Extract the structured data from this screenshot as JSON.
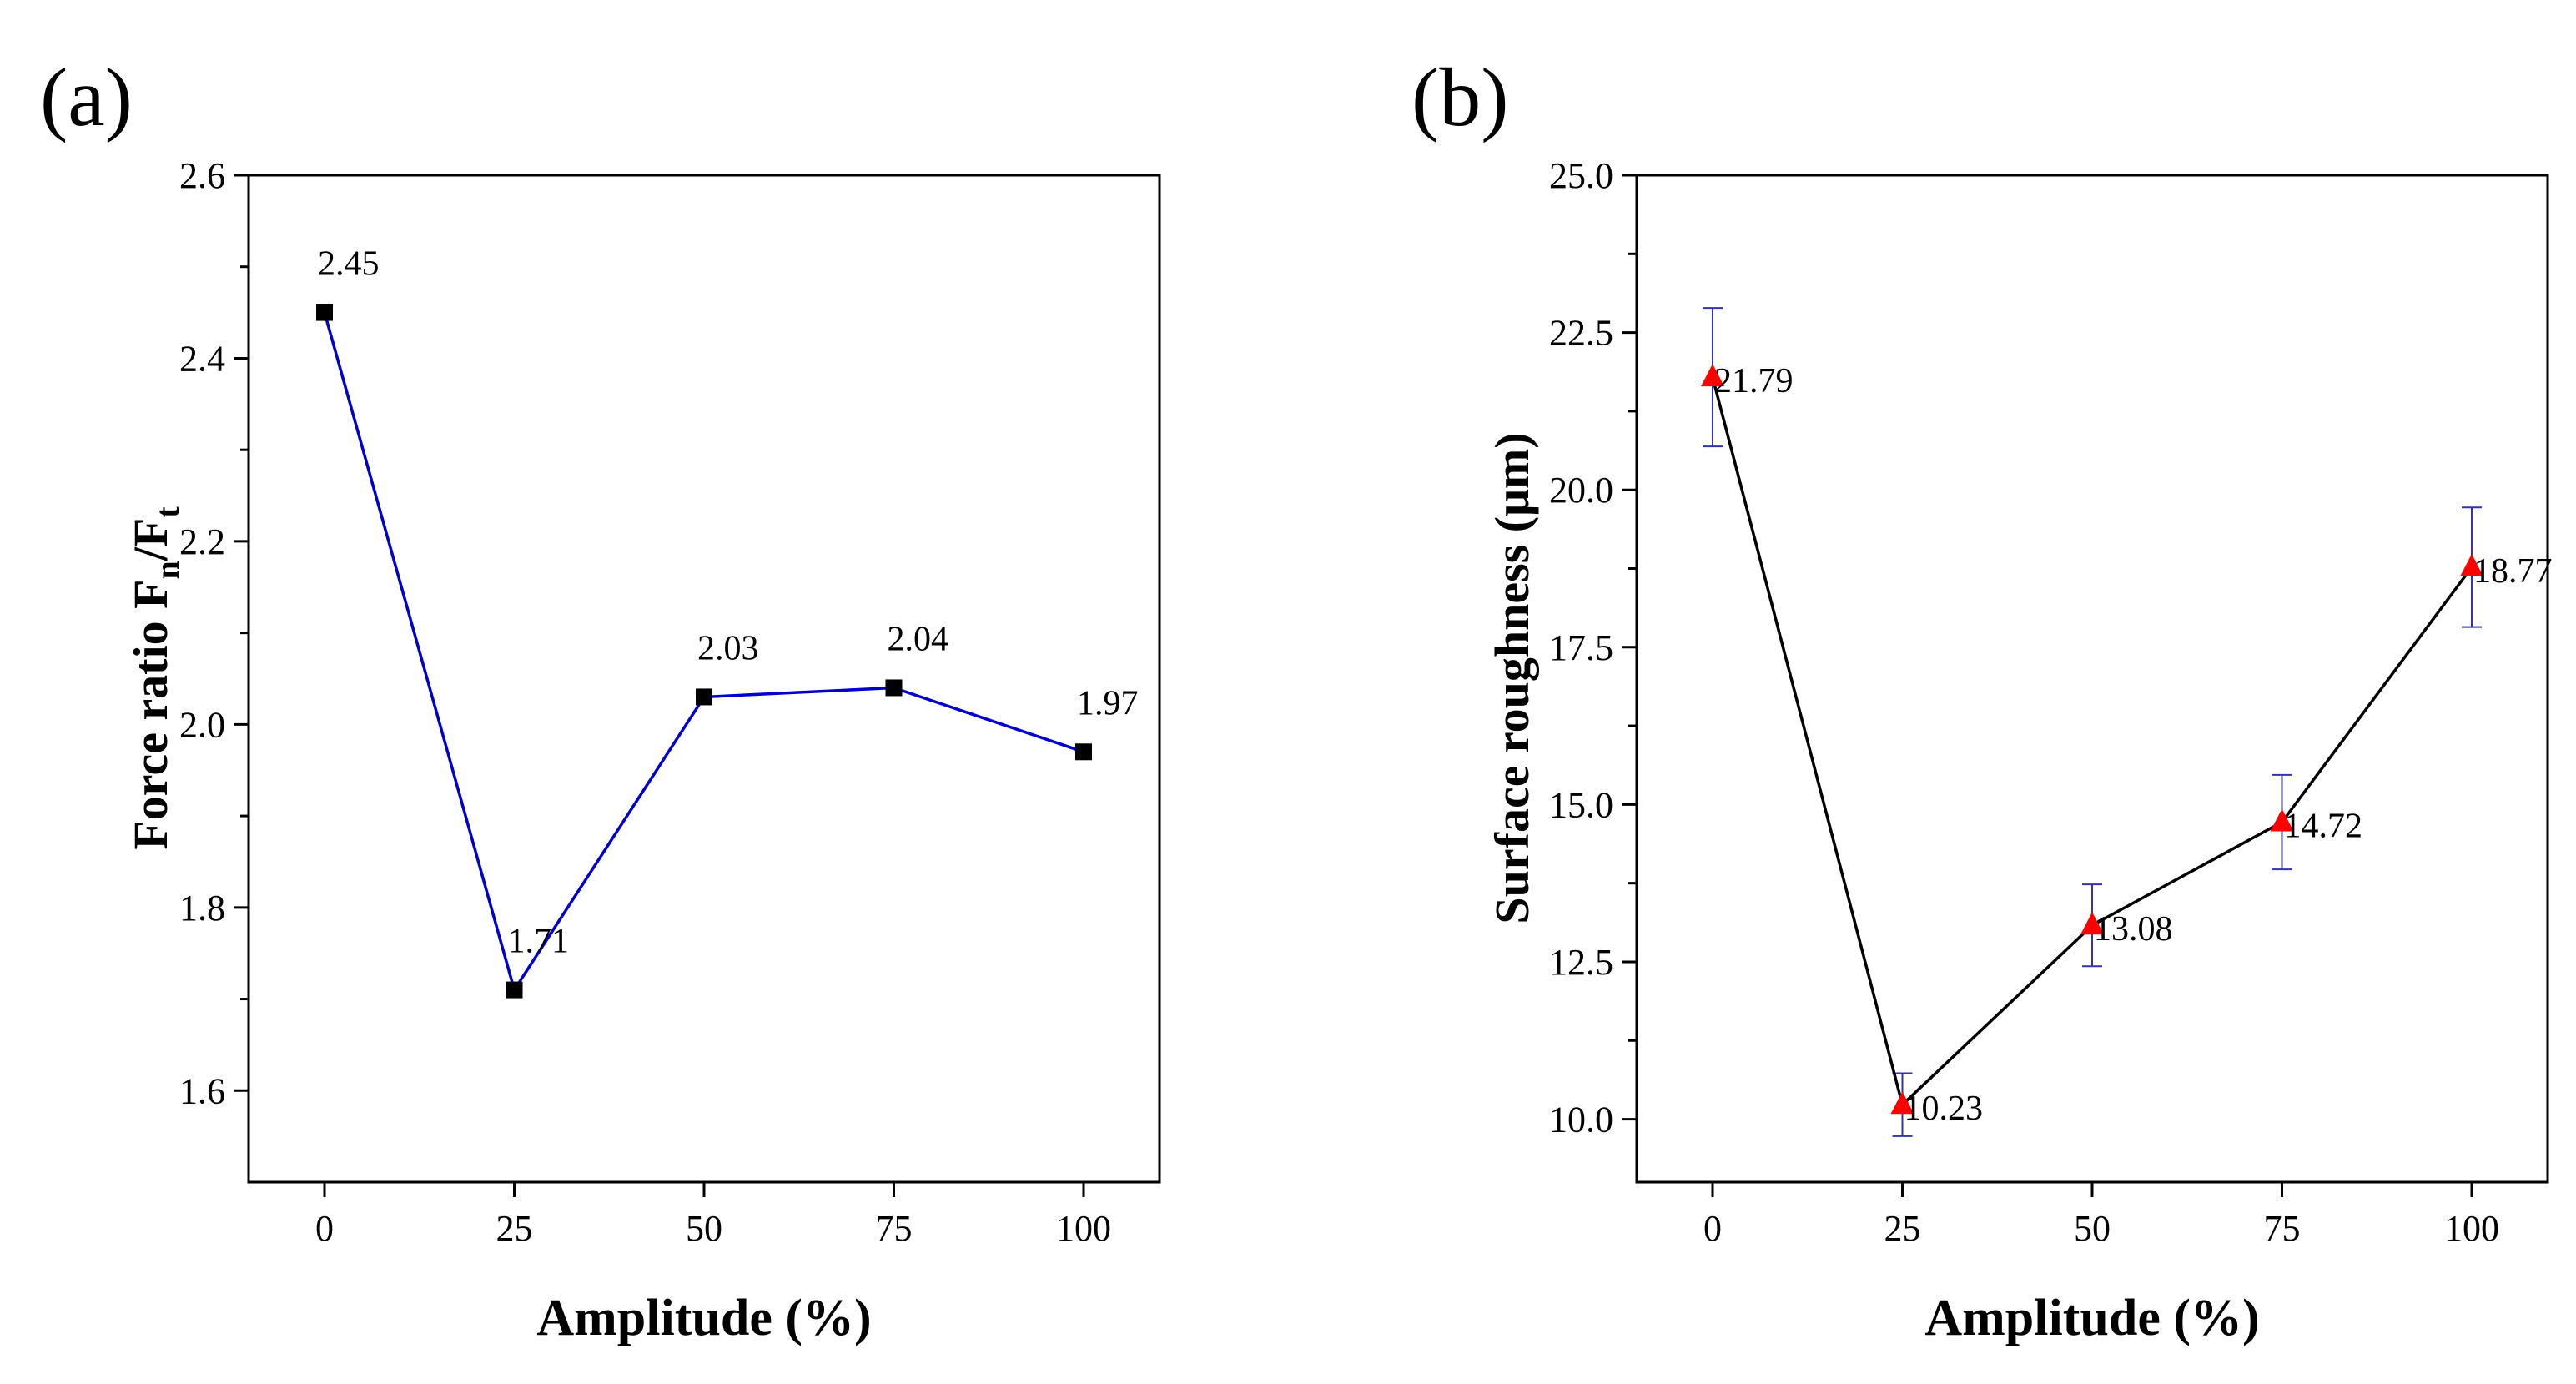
{
  "chart_data": [
    {
      "panel_label": "(a)",
      "type": "line",
      "title": "",
      "xlabel": "Amplitude (%)",
      "ylabel": {
        "prefix": "Force ratio F",
        "sub1": "n",
        "mid": "/F",
        "sub2": "t"
      },
      "x": [
        0,
        25,
        50,
        75,
        100
      ],
      "xlim": [
        -10,
        110
      ],
      "xticks": [
        0,
        25,
        50,
        75,
        100
      ],
      "xtick_labels": [
        "0",
        "25",
        "50",
        "75",
        "100"
      ],
      "ylim": [
        1.5,
        2.6
      ],
      "yticks": [
        1.6,
        1.8,
        2.0,
        2.2,
        2.4,
        2.6
      ],
      "ytick_labels": [
        "1.6",
        "1.8",
        "2.0",
        "2.2",
        "2.4",
        "2.6"
      ],
      "yminor": [
        1.7,
        1.9,
        2.1,
        2.3,
        2.5
      ],
      "series": [
        {
          "name": "Force ratio",
          "values": [
            2.45,
            1.71,
            2.03,
            2.04,
            1.97
          ],
          "labels": [
            "2.45",
            "1.71",
            "2.03",
            "2.04",
            "1.97"
          ],
          "line_color": "#0000cc",
          "marker": "square",
          "marker_color": "#000000"
        }
      ],
      "grid": false,
      "legend": "none"
    },
    {
      "panel_label": "(b)",
      "type": "line",
      "title": "",
      "xlabel": "Amplitude  (%)",
      "ylabel": "Surface roughness (μm)",
      "x": [
        0,
        25,
        50,
        75,
        100
      ],
      "xlim": [
        -10,
        110
      ],
      "xticks": [
        0,
        25,
        50,
        75,
        100
      ],
      "xtick_labels": [
        "0",
        "25",
        "50",
        "75",
        "100"
      ],
      "ylim": [
        9,
        25
      ],
      "yticks": [
        10.0,
        12.5,
        15.0,
        17.5,
        20.0,
        22.5,
        25.0
      ],
      "ytick_labels": [
        "10.0",
        "12.5",
        "15.0",
        "17.5",
        "20.0",
        "22.5",
        "25.0"
      ],
      "yminor": [
        11.25,
        13.75,
        16.25,
        18.75,
        21.25,
        23.75
      ],
      "series": [
        {
          "name": "Surface roughness",
          "values": [
            21.79,
            10.23,
            13.08,
            14.72,
            18.77
          ],
          "labels": [
            "21.79",
            "10.23",
            "13.08",
            "14.72",
            "18.77"
          ],
          "errors": [
            1.1,
            0.5,
            0.65,
            0.75,
            0.95
          ],
          "line_color": "#000000",
          "marker": "triangle",
          "marker_color": "#ff0000",
          "error_color": "#3333aa"
        }
      ],
      "grid": false,
      "legend": "none"
    }
  ]
}
